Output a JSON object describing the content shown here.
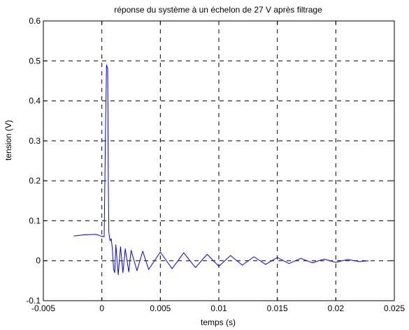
{
  "chart_data": {
    "type": "line",
    "title": "réponse du système à un échelon de 27 V après filtrage",
    "xlabel": "temps (s)",
    "ylabel": "tension (V)",
    "xlim": [
      -0.005,
      0.025
    ],
    "ylim": [
      -0.1,
      0.6
    ],
    "xticks": [
      -0.005,
      0,
      0.005,
      0.01,
      0.015,
      0.02,
      0.025
    ],
    "xtick_labels": [
      "-0.005",
      "0",
      "0.005",
      "0.01",
      "0.015",
      "0.02",
      "0.025"
    ],
    "yticks": [
      -0.1,
      0,
      0.1,
      0.2,
      0.3,
      0.4,
      0.5,
      0.6
    ],
    "ytick_labels": [
      "-0.1",
      "0",
      "0.1",
      "0.2",
      "0.3",
      "0.4",
      "0.5",
      "0.6"
    ],
    "grid": true,
    "grid_style": "dashed",
    "series_color": "#0000ff",
    "series": [
      {
        "description": "step response after filtering (sampled)",
        "x": [
          -0.0024,
          -0.0015,
          -0.0005,
          0.0,
          0.0002,
          0.0003,
          0.0004,
          0.0005,
          0.00055,
          0.0006,
          0.0007,
          0.0008,
          0.0009,
          0.001,
          0.0011,
          0.0012,
          0.0014,
          0.0016,
          0.0018,
          0.002,
          0.0023,
          0.0025,
          0.003,
          0.0035,
          0.004,
          0.005,
          0.006,
          0.007,
          0.008,
          0.009,
          0.01,
          0.011,
          0.012,
          0.013,
          0.014,
          0.015,
          0.016,
          0.017,
          0.018,
          0.019,
          0.02,
          0.021,
          0.022,
          0.0228
        ],
        "y": [
          0.062,
          0.065,
          0.066,
          0.061,
          0.06,
          0.3,
          0.49,
          0.48,
          0.2,
          0.07,
          0.05,
          0.055,
          0.03,
          -0.02,
          -0.03,
          0.04,
          -0.035,
          0.035,
          -0.03,
          0.03,
          -0.028,
          0.026,
          -0.025,
          0.024,
          -0.022,
          0.022,
          -0.02,
          0.02,
          -0.017,
          0.016,
          -0.014,
          0.013,
          -0.011,
          0.01,
          -0.009,
          0.008,
          -0.007,
          0.006,
          -0.005,
          0.004,
          -0.004,
          0.003,
          -0.002,
          0.0
        ]
      }
    ]
  }
}
